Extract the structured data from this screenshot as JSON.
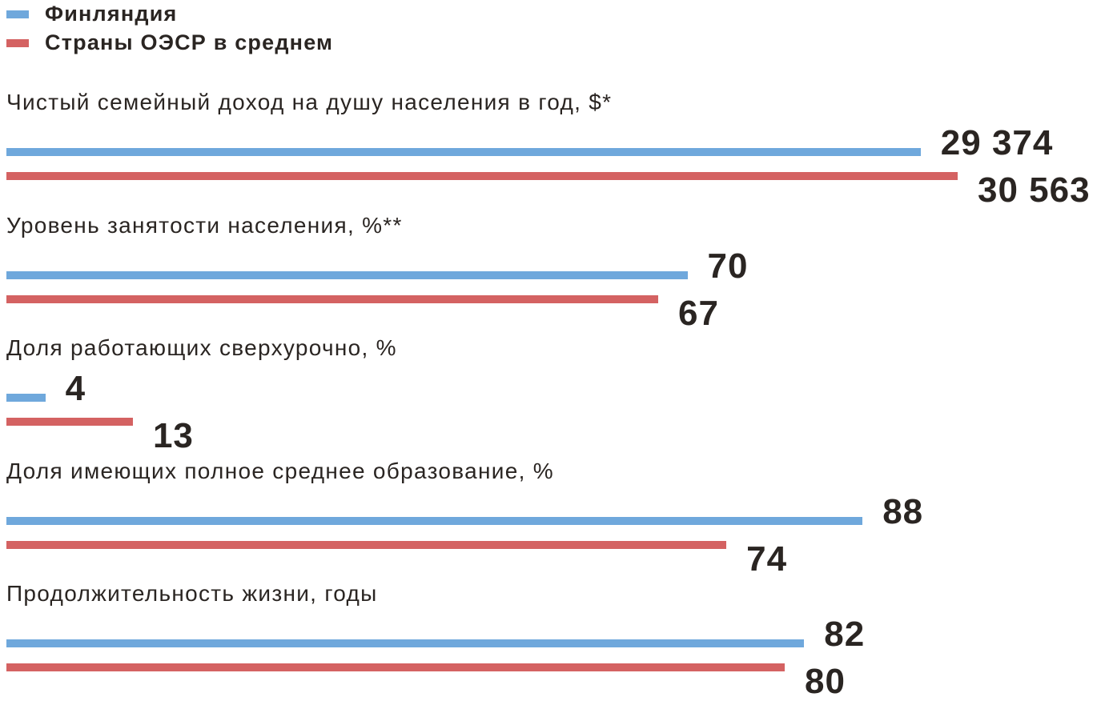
{
  "chart_data": {
    "type": "bar",
    "orientation": "horizontal",
    "legend_position": "top-left",
    "grid": false,
    "colors": {
      "Финляндия": "#6fa8dc",
      "Страны ОЭСР в среднем": "#d46262"
    },
    "series_names": [
      "Финляндия",
      "Страны ОЭСР в среднем"
    ],
    "categories": [
      {
        "label": "Чистый семейный доход на душу населения в год, $*",
        "values": [
          29374,
          30563
        ],
        "value_labels": [
          "29 374",
          "30 563"
        ]
      },
      {
        "label": "Уровень занятости населения, %**",
        "values": [
          70,
          67
        ],
        "value_labels": [
          "70",
          "67"
        ]
      },
      {
        "label": "Доля работающих сверхурочно, %",
        "values": [
          4,
          13
        ],
        "value_labels": [
          "4",
          "13"
        ]
      },
      {
        "label": "Доля имеющих полное среднее образование, %",
        "values": [
          88,
          74
        ],
        "value_labels": [
          "88",
          "74"
        ]
      },
      {
        "label": "Продолжительность жизни, годы",
        "values": [
          82,
          80
        ],
        "value_labels": [
          "82",
          "80"
        ]
      }
    ]
  }
}
